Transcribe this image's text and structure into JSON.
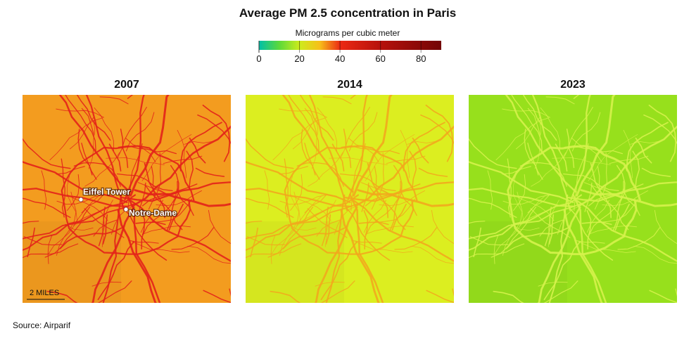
{
  "title": "Average PM 2.5 concentration in Paris",
  "legend": {
    "label": "Micrograms per cubic meter",
    "range": [
      0,
      90
    ],
    "ticks": [
      0,
      20,
      40,
      60,
      80
    ],
    "stops": [
      {
        "value": 0,
        "color": "#00bfa8"
      },
      {
        "value": 10,
        "color": "#5cd93a"
      },
      {
        "value": 20,
        "color": "#cdec1c"
      },
      {
        "value": 30,
        "color": "#f7bf1a"
      },
      {
        "value": 40,
        "color": "#ec2a14"
      },
      {
        "value": 60,
        "color": "#b6110b"
      },
      {
        "value": 90,
        "color": "#730505"
      }
    ]
  },
  "panels": [
    {
      "year": "2007",
      "background": "#f39c1f",
      "road_color": "#e3221a",
      "places": [
        {
          "name": "Eiffel Tower"
        },
        {
          "name": "Notre-Dame"
        }
      ]
    },
    {
      "year": "2014",
      "background": "#dcee20",
      "road_color": "#f2a81d"
    },
    {
      "year": "2023",
      "background": "#97e01c",
      "road_color": "#d6f24c"
    }
  ],
  "scale_bar": "2 MILES",
  "source": "Source: Airparif"
}
